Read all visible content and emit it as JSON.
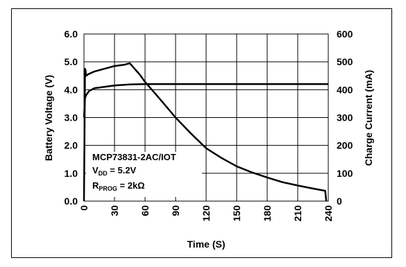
{
  "chart_data": {
    "type": "line",
    "title": "",
    "xlabel": "Time (S)",
    "ylabel": "Battery Voltage (V)",
    "y2label": "Charge Current (mA)",
    "xlim": [
      0,
      240
    ],
    "ylim": [
      0,
      6
    ],
    "y2lim": [
      0,
      600
    ],
    "x_ticks": [
      "0",
      "30",
      "60",
      "90",
      "120",
      "150",
      "180",
      "210",
      "240"
    ],
    "y_ticks": [
      "0.0",
      "1.0",
      "2.0",
      "3.0",
      "4.0",
      "5.0",
      "6.0"
    ],
    "y2_ticks": [
      "0",
      "100",
      "200",
      "300",
      "400",
      "500",
      "600"
    ],
    "grid": true,
    "annotation": {
      "line1": "MCP73831-2AC/IOT",
      "line2_main": "V",
      "line2_sub": "DD",
      "line2_rest": " = 5.2V",
      "line3_main": "R",
      "line3_sub": "PROG",
      "line3_rest": " = 2kΩ"
    },
    "series": [
      {
        "axis": "left",
        "x": [
          0,
          1,
          2,
          3,
          5,
          10,
          20,
          30,
          45,
          60,
          90,
          120,
          150,
          180,
          210,
          240
        ],
        "values": [
          3.0,
          3.7,
          3.8,
          3.85,
          3.95,
          4.05,
          4.1,
          4.15,
          4.19,
          4.2,
          4.2,
          4.2,
          4.2,
          4.2,
          4.2,
          4.2
        ]
      },
      {
        "axis": "right",
        "x": [
          0,
          1,
          1.5,
          2,
          4,
          10,
          20,
          30,
          40,
          45,
          55,
          60,
          75,
          90,
          105,
          120,
          135,
          150,
          165,
          180,
          195,
          210,
          225,
          237,
          238
        ],
        "values": [
          0,
          475,
          470,
          450,
          455,
          465,
          475,
          485,
          490,
          495,
          453,
          428,
          365,
          300,
          243,
          190,
          155,
          125,
          103,
          85,
          68,
          56,
          45,
          37,
          0
        ]
      }
    ]
  }
}
